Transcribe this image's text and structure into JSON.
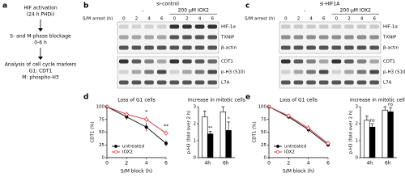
{
  "panel_a": {
    "label": "a",
    "steps": [
      {
        "lines": [
          "HIF activation",
          "(24 h PHDi)"
        ]
      },
      {
        "lines": [
          "S- and M-phase blockage",
          "0-6 h"
        ]
      },
      {
        "lines": [
          "Analysis of cell cycle markers",
          "G1: CDT1",
          "M: phospho-H3"
        ]
      }
    ]
  },
  "blots": [
    {
      "label": "b",
      "title": "si-control",
      "control": "-",
      "treatment": "200 µM IOX2",
      "arrest_label": "S/M arrest (h)",
      "timepoints": [
        "0",
        "2",
        "4",
        "6",
        "0",
        "2",
        "4",
        "6"
      ],
      "proteins": [
        "HIF-1α",
        "TXNIP",
        "β-actin",
        "CDT1",
        "p-H3 (S10)",
        "L7A"
      ]
    },
    {
      "label": "c",
      "title": "si-HIF1A",
      "control": "-",
      "treatment": "200 µM IOX2",
      "arrest_label": "S/M arrest (h)",
      "timepoints": [
        "0",
        "2",
        "4",
        "6",
        "0",
        "2",
        "4",
        "6"
      ],
      "proteins": [
        "HIF-1α",
        "TXNIP",
        "β-actin",
        "CDT1",
        "p-H3 (S10)",
        "L7A"
      ]
    }
  ],
  "chart_data": [
    {
      "type": "line",
      "panel_label": "d",
      "title": "Loss of G1 cells",
      "xlabel": "S/M block (h)",
      "ylabel": "CDT1 (%)",
      "x": [
        0,
        2,
        4,
        6
      ],
      "xlim": [
        0,
        6
      ],
      "xticks": [
        0,
        2,
        4,
        6
      ],
      "ylim": [
        0,
        100
      ],
      "yticks": [
        0,
        25,
        50,
        75,
        100
      ],
      "legend": "lower left",
      "series": [
        {
          "name": "untreated",
          "color": "#000000",
          "values": [
            100,
            80,
            60,
            28
          ],
          "errors": [
            0,
            6,
            8,
            6
          ]
        },
        {
          "name": "IOX2",
          "color": "#d62728",
          "values": [
            100,
            85,
            75,
            48
          ],
          "errors": [
            0,
            5,
            6,
            5
          ]
        }
      ],
      "annotations": [
        {
          "x": 4,
          "text": "*"
        },
        {
          "x": 6,
          "text": "**"
        }
      ]
    },
    {
      "type": "bar",
      "title": "Increase in mitotic cells",
      "ylabel": "p-H3 (fold over 2 h)",
      "categories": [
        "4h",
        "6h"
      ],
      "ylim": [
        0,
        3
      ],
      "yticks": [
        0,
        1,
        2,
        3
      ],
      "series": [
        {
          "name": "untreated",
          "color": "#ffffff",
          "values": [
            2.4,
            2.7
          ],
          "errors": [
            0.35,
            0.3
          ]
        },
        {
          "name": "IOX2",
          "color": "#000000",
          "values": [
            1.4,
            1.6
          ],
          "errors": [
            0.15,
            0.5
          ],
          "labels": [
            "**",
            "*"
          ]
        }
      ]
    },
    {
      "type": "line",
      "panel_label": "e",
      "title": "Loss of G1 cells",
      "xlabel": "S/M block (h)",
      "ylabel": "CDT1 (%)",
      "x": [
        0,
        2,
        4,
        6
      ],
      "xlim": [
        0,
        6
      ],
      "xticks": [
        0,
        2,
        4,
        6
      ],
      "ylim": [
        0,
        100
      ],
      "yticks": [
        0,
        25,
        50,
        75,
        100
      ],
      "legend": "lower left",
      "series": [
        {
          "name": "untreated",
          "color": "#000000",
          "values": [
            100,
            80,
            55,
            25
          ],
          "errors": [
            0,
            4,
            6,
            4
          ]
        },
        {
          "name": "IOX2",
          "color": "#d62728",
          "values": [
            100,
            82,
            58,
            28
          ],
          "errors": [
            0,
            4,
            6,
            5
          ]
        }
      ]
    },
    {
      "type": "bar",
      "title": "Increase in mitotic cells",
      "ylabel": "p-H3 (fold over 2 h)",
      "categories": [
        "4h",
        "6h"
      ],
      "ylim": [
        0,
        3
      ],
      "yticks": [
        0,
        1,
        2,
        3
      ],
      "series": [
        {
          "name": "untreated",
          "color": "#ffffff",
          "values": [
            2.2,
            2.8
          ],
          "errors": [
            0.25,
            0.2
          ]
        },
        {
          "name": "IOX2",
          "color": "#000000",
          "values": [
            1.8,
            2.7
          ],
          "errors": [
            0.2,
            0.25
          ],
          "labels": [
            "ns",
            "ns"
          ]
        }
      ]
    }
  ]
}
